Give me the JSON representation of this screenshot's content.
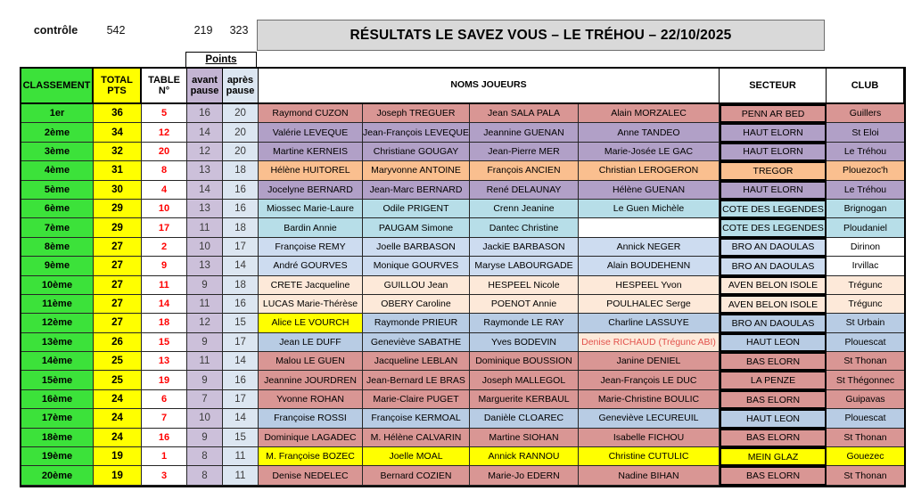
{
  "control": {
    "label": "contrôle",
    "total_sum": "542",
    "avant_sum": "219",
    "apres_sum": "323"
  },
  "title": "RÉSULTATS LE SAVEZ VOUS – LE TRÉHOU – 22/10/2025",
  "points_label": "Points",
  "headers": {
    "classement": "CLASSEMENT",
    "total_pts": "TOTAL PTS",
    "table_n": "TABLE N°",
    "avant_pause": "avant pause",
    "apres_pause": "après pause",
    "noms_joueurs": "NOMS JOUEURS",
    "secteur": "SECTEUR",
    "club": "CLUB"
  },
  "palette": {
    "rank_bg": "#3ce23a",
    "total_bg": "#ffff00",
    "table_fg": "#ff0000",
    "avant_bg": "#ccc0da",
    "apres_bg": "#dce6f1",
    "avant_header_bg": "#c3b4d2",
    "apres_header_bg": "#dce6f1",
    "title_bg": "#d9d9d9"
  },
  "rows": [
    {
      "rank": "1er",
      "total": "36",
      "table": "5",
      "avant": "16",
      "apres": "20",
      "bg": "#d99694",
      "players": [
        "Raymond CUZON",
        "Joseph TREGUER",
        "Jean SALA PALA",
        "Alain MORZALEC"
      ],
      "secteur": "PENN AR BED",
      "club": "Guillers"
    },
    {
      "rank": "2ème",
      "total": "34",
      "table": "12",
      "avant": "14",
      "apres": "20",
      "bg": "#b1a0c7",
      "players": [
        "Valérie LEVEQUE",
        "Jean-François LEVEQUE",
        "Jeannine GUENAN",
        "Anne TANDEO"
      ],
      "secteur": "HAUT ELORN",
      "club": "St Eloi"
    },
    {
      "rank": "3ème",
      "total": "32",
      "table": "20",
      "avant": "12",
      "apres": "20",
      "bg": "#b1a0c7",
      "players": [
        "Martine KERNEIS",
        "Christiane GOUGAY",
        "Jean-Pierre MER",
        "Marie-Josée LE GAC"
      ],
      "secteur": "HAUT ELORN",
      "club": "Le Tréhou"
    },
    {
      "rank": "4ème",
      "total": "31",
      "table": "8",
      "avant": "13",
      "apres": "18",
      "bg": "#fabf8f",
      "players": [
        "Hélène HUITOREL",
        "Maryvonne ANTOINE",
        "François ANCIEN",
        "Christian LEROGERON"
      ],
      "secteur": "TREGOR",
      "club": "Plouezoc'h"
    },
    {
      "rank": "5ème",
      "total": "30",
      "table": "4",
      "avant": "14",
      "apres": "16",
      "bg": "#b1a0c7",
      "players": [
        "Jocelyne BERNARD",
        "Jean-Marc BERNARD",
        "René DELAUNAY",
        "Hélène GUENAN"
      ],
      "secteur": "HAUT ELORN",
      "club": "Le Tréhou"
    },
    {
      "rank": "6ème",
      "total": "29",
      "table": "10",
      "avant": "13",
      "apres": "16",
      "bg": "#b7dee8",
      "players": [
        "Miossec Marie-Laure",
        "Odile PRIGENT",
        "Crenn Jeanine",
        "Le Guen Michèle"
      ],
      "secteur": "COTE DES LEGENDES",
      "club": "Brignogan"
    },
    {
      "rank": "7ème",
      "total": "29",
      "table": "17",
      "avant": "11",
      "apres": "18",
      "bg": "#b7dee8",
      "players": [
        "Bardin Annie",
        "PAUGAM Simone",
        "Dantec Christine",
        ""
      ],
      "player_bg": {
        "3": "#ffffff"
      },
      "secteur": "COTE DES LEGENDES",
      "club": "Ploudaniel"
    },
    {
      "rank": "8ème",
      "total": "27",
      "table": "2",
      "avant": "10",
      "apres": "17",
      "bg": "#cddcf0",
      "players": [
        "Françoise REMY",
        "Joelle BARBASON",
        "JackiE BARBASON",
        "Annick NEGER"
      ],
      "secteur": "BRO AN DAOULAS",
      "club": "Dirinon",
      "club_bg": "#ffffff"
    },
    {
      "rank": "9ème",
      "total": "27",
      "table": "9",
      "avant": "13",
      "apres": "14",
      "bg": "#cddcf0",
      "players": [
        "André GOURVES",
        "Monique GOURVES",
        "Maryse LABOURGADE",
        "Alain BOUDEHENN"
      ],
      "secteur": "BRO AN DAOULAS",
      "club": "Irvillac",
      "club_bg": "#ffffff"
    },
    {
      "rank": "10ème",
      "total": "27",
      "table": "11",
      "avant": "9",
      "apres": "18",
      "bg": "#fde9d9",
      "players": [
        "CRETE Jacqueline",
        "GUILLOU Jean",
        "HESPEEL Nicole",
        "HESPEEL Yvon"
      ],
      "secteur": "AVEN BELON ISOLE",
      "club": "Trégunc"
    },
    {
      "rank": "11ème",
      "total": "27",
      "table": "14",
      "avant": "11",
      "apres": "16",
      "bg": "#fde9d9",
      "players": [
        "LUCAS Marie-Thérèse",
        "OBERY Caroline",
        "POENOT Annie",
        "POULHALEC Serge"
      ],
      "secteur": "AVEN BELON ISOLE",
      "club": "Trégunc"
    },
    {
      "rank": "12ème",
      "total": "27",
      "table": "18",
      "avant": "12",
      "apres": "15",
      "bg": "#b8cce4",
      "players": [
        "Alice LE VOURCH",
        "Raymonde PRIEUR",
        "Raymonde LE RAY",
        "Charline LASSUYE"
      ],
      "player_bg": {
        "0": "#ffff00"
      },
      "secteur": "BRO AN DAOULAS",
      "club": "St Urbain"
    },
    {
      "rank": "13ème",
      "total": "26",
      "table": "15",
      "avant": "9",
      "apres": "17",
      "bg": "#b8cce4",
      "players": [
        "Jean LE DUFF",
        "Geneviève SABATHE",
        "Yves BODEVIN",
        "Denise RICHAUD (Trégunc ABI)"
      ],
      "player_bg": {
        "3": "#fde9d9"
      },
      "player_fg": {
        "3": "#e2524c"
      },
      "secteur": "HAUT LEON",
      "club": "Plouescat"
    },
    {
      "rank": "14ème",
      "total": "25",
      "table": "13",
      "avant": "11",
      "apres": "14",
      "bg": "#d99694",
      "players": [
        "Malou LE GUEN",
        "Jacqueline LEBLAN",
        "Dominique BOUSSION",
        "Janine DENIEL"
      ],
      "secteur": "BAS ELORN",
      "club": "St Thonan"
    },
    {
      "rank": "15ème",
      "total": "25",
      "table": "19",
      "avant": "9",
      "apres": "16",
      "bg": "#d99694",
      "players": [
        "Jeannine JOURDREN",
        "Jean-Bernard LE BRAS",
        "Joseph MALLEGOL",
        "Jean-François LE DUC"
      ],
      "secteur": "LA PENZE",
      "club": "St Thégonnec"
    },
    {
      "rank": "16ème",
      "total": "24",
      "table": "6",
      "avant": "7",
      "apres": "17",
      "bg": "#d99694",
      "players": [
        "Yvonne ROHAN",
        "Marie-Claire PUGET",
        "Marguerite KERBAUL",
        "Marie-Christine BOULIC"
      ],
      "secteur": "BAS ELORN",
      "club": "Guipavas"
    },
    {
      "rank": "17ème",
      "total": "24",
      "table": "7",
      "avant": "10",
      "apres": "14",
      "bg": "#b8cce4",
      "players": [
        "Françoise ROSSI",
        "Françoise KERMOAL",
        "Danièle CLOAREC",
        "Geneviève LECUREUIL"
      ],
      "secteur": "HAUT LEON",
      "club": "Plouescat"
    },
    {
      "rank": "18ème",
      "total": "24",
      "table": "16",
      "avant": "9",
      "apres": "15",
      "bg": "#d99694",
      "players": [
        "Dominique LAGADEC",
        "M. Hélène CALVARIN",
        "Martine SIOHAN",
        "Isabelle FICHOU"
      ],
      "secteur": "BAS ELORN",
      "club": "St Thonan"
    },
    {
      "rank": "19ème",
      "total": "19",
      "table": "1",
      "avant": "8",
      "apres": "11",
      "bg": "#ffff00",
      "players": [
        "M. Françoise BOZEC",
        "Joelle MOAL",
        "Annick RANNOU",
        "Christine CUTULIC"
      ],
      "secteur": "MEIN GLAZ",
      "club": "Gouezec"
    },
    {
      "rank": "20ème",
      "total": "19",
      "table": "3",
      "avant": "8",
      "apres": "11",
      "bg": "#d99694",
      "players": [
        "Denise NEDELEC",
        "Bernard COZIEN",
        "Marie-Jo EDERN",
        "Nadine BIHAN"
      ],
      "secteur": "BAS ELORN",
      "club": "St Thonan"
    }
  ]
}
